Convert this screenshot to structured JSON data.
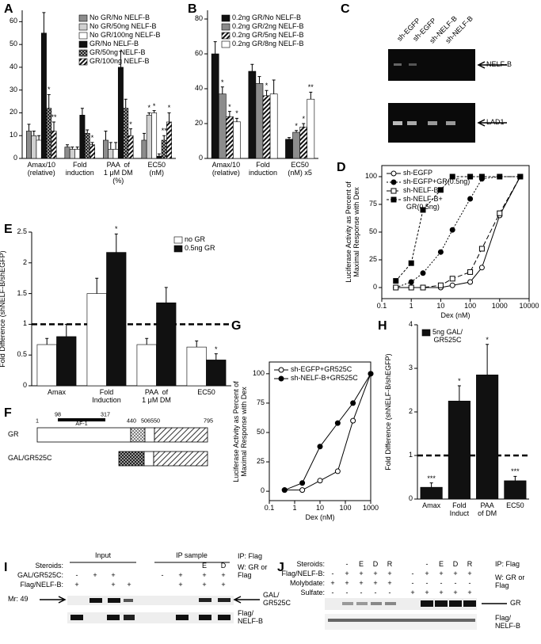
{
  "chart_data": [
    {
      "panel": "A",
      "type": "bar",
      "categories": [
        "Amax/10\n(relative)",
        "Fold\ninduction",
        "PAA  of\n1 μM DM\n(%)",
        "EC50\n(nM)"
      ],
      "ylim": [
        0,
        65
      ],
      "yticks": [
        0,
        10,
        20,
        30,
        40,
        50,
        60
      ],
      "legend": "upper right",
      "series": [
        {
          "name": "No GR/No NELF-B",
          "color": "#8c8c8c",
          "values": [
            12,
            5,
            8,
            8
          ],
          "errors": [
            3,
            1,
            4,
            3
          ]
        },
        {
          "name": "No GR/50ng NELF-B",
          "color": "#d0d0d0",
          "values": [
            10,
            4,
            4,
            19
          ],
          "errors": [
            2,
            1,
            3,
            1
          ],
          "stars": [
            null,
            null,
            null,
            "*"
          ]
        },
        {
          "name": "No GR/100ng NELF-B",
          "color": "#ffffff",
          "values": [
            8,
            4,
            4,
            20
          ],
          "errors": [
            2,
            1,
            3,
            1
          ],
          "stars": [
            null,
            null,
            null,
            "*"
          ]
        },
        {
          "name": "GR/No NELF-B",
          "color": "#111111",
          "values": [
            55,
            19,
            40,
            1
          ],
          "errors": [
            9,
            3,
            7,
            1
          ]
        },
        {
          "name": "GR/50ng NELF-B",
          "color": "#555555",
          "pattern": "check",
          "values": [
            22,
            11,
            22,
            8
          ],
          "errors": [
            6,
            1.5,
            4,
            2
          ],
          "stars": [
            "*",
            null,
            null,
            "**"
          ]
        },
        {
          "name": "GR/100ng NELF-B",
          "color": "#222222",
          "pattern": "hatch",
          "values": [
            12,
            6,
            10,
            16
          ],
          "errors": [
            4,
            1,
            3,
            4
          ],
          "stars": [
            "**",
            "*",
            "*",
            "*"
          ]
        }
      ]
    },
    {
      "panel": "B",
      "type": "bar",
      "categories": [
        "Amax/10\n(relative)",
        "Fold\ninduction",
        "EC50\n(nM) x5"
      ],
      "ylim": [
        0,
        85
      ],
      "yticks": [
        0,
        20,
        40,
        60,
        80
      ],
      "legend": "upper right",
      "series": [
        {
          "name": "0.2ng GR/No NELF-B",
          "color": "#111111",
          "values": [
            60,
            50,
            11
          ],
          "errors": [
            7,
            4,
            1
          ]
        },
        {
          "name": "0.2ng GR/2ng NELF-B",
          "color": "#8c8c8c",
          "values": [
            37,
            43,
            15
          ],
          "errors": [
            4,
            4,
            1
          ],
          "stars": [
            "*",
            null,
            "*"
          ]
        },
        {
          "name": "0.2ng GR/5ng NELF-B",
          "color": "#222222",
          "pattern": "hatch",
          "values": [
            24,
            36,
            18
          ],
          "errors": [
            3,
            3,
            2
          ],
          "stars": [
            "*",
            "*",
            "*"
          ]
        },
        {
          "name": "0.2ng GR/8ng NELF-B",
          "color": "#ffffff",
          "values": [
            21,
            37,
            34
          ],
          "errors": [
            2,
            8,
            4
          ],
          "stars": [
            "*",
            null,
            "**"
          ]
        }
      ]
    },
    {
      "panel": "D",
      "type": "scatter",
      "x": [
        0.3,
        1,
        2.5,
        10,
        25,
        100,
        250,
        1000,
        5000
      ],
      "xlim": [
        0.1,
        10000
      ],
      "xticks": [
        0.1,
        1,
        10,
        100,
        1000,
        10000
      ],
      "log_x": true,
      "ylim": [
        -10,
        110
      ],
      "yticks": [
        0,
        25,
        50,
        75,
        100
      ],
      "xlabel": "Dex (nM)",
      "ylabel": "Luciferase Activity as Percent of\nMaximal Response with Dex",
      "legend": "upper left",
      "series": [
        {
          "name": "sh-EGFP",
          "color": "#000000",
          "marker": "circle-open",
          "dash": "none",
          "values": [
            0,
            0,
            0,
            0,
            2,
            5,
            18,
            65,
            100
          ]
        },
        {
          "name": "sh-EGFP+GR(0.5ng)",
          "color": "#000000",
          "marker": "circle",
          "dash": "2,2",
          "values": [
            0,
            5,
            13,
            32,
            52,
            80,
            98,
            100,
            100
          ]
        },
        {
          "name": "sh-NELF-B",
          "color": "#000000",
          "marker": "square-open",
          "dash": "6,3",
          "values": [
            0,
            0,
            0,
            2,
            8,
            14,
            35,
            67,
            100
          ]
        },
        {
          "name": "sh-NELF-B+\nGR(0.5ng)",
          "color": "#000000",
          "marker": "square",
          "dash": "3,2",
          "values": [
            6,
            22,
            70,
            88,
            100,
            100,
            100,
            100,
            100
          ]
        }
      ]
    },
    {
      "panel": "E",
      "type": "bar",
      "categories": [
        "Amax",
        "Fold\nInduction",
        "PAA  of\n1 μM DM",
        "EC50"
      ],
      "ylim": [
        0,
        2.5
      ],
      "yticks": [
        0,
        0.5,
        1,
        1.5,
        2,
        2.5
      ],
      "ylabel": "Fold Difference (shNELF-B/shEGFP)",
      "legend": "upper right",
      "reference_line": 1,
      "series": [
        {
          "name": "no GR",
          "color": "#ffffff",
          "values": [
            0.67,
            1.5,
            0.67,
            0.63
          ],
          "errors": [
            0.1,
            0.25,
            0.1,
            0.1
          ]
        },
        {
          "name": "0.5ng GR",
          "color": "#111111",
          "values": [
            0.8,
            2.17,
            1.35,
            0.42
          ],
          "errors": [
            0.2,
            0.3,
            0.25,
            0.1
          ],
          "stars": [
            null,
            "*",
            null,
            "*"
          ]
        }
      ]
    },
    {
      "panel": "G",
      "type": "scatter",
      "x": [
        0.4,
        2,
        10,
        50,
        200,
        1000
      ],
      "xlim": [
        0.1,
        1000
      ],
      "xticks": [
        0.1,
        1,
        10,
        100,
        1000
      ],
      "log_x": true,
      "ylim": [
        -8,
        110
      ],
      "yticks": [
        0,
        25,
        50,
        75,
        100
      ],
      "xlabel": "Dex (nM)",
      "ylabel": "Luciferase Activity as Percent of\nMaximal Response with Dex",
      "legend": "upper left",
      "series": [
        {
          "name": "sh-EGFP+GR525C",
          "color": "#000000",
          "marker": "circle-open",
          "dash": "none",
          "values": [
            1,
            1,
            9,
            17,
            60,
            100
          ]
        },
        {
          "name": "sh-NELF-B+GR525C",
          "color": "#000000",
          "marker": "circle",
          "dash": "none",
          "values": [
            1,
            7,
            38,
            58,
            75,
            100
          ]
        }
      ]
    },
    {
      "panel": "H",
      "type": "bar",
      "categories": [
        "Amax",
        "Fold\nInduct",
        "PAA\nof DM",
        "EC50"
      ],
      "ylim": [
        0,
        4
      ],
      "yticks": [
        0,
        1,
        2,
        3,
        4
      ],
      "ylabel": "Fold Difference (shNELF-B/shEGFP)",
      "legend": "upper left",
      "reference_line": 1,
      "series": [
        {
          "name": "5ng GAL/\nGR525C",
          "color": "#111111",
          "values": [
            0.27,
            2.25,
            2.85,
            0.42
          ],
          "errors": [
            0.1,
            0.35,
            0.7,
            0.1
          ],
          "stars": [
            "***",
            "*",
            "*",
            "***"
          ]
        }
      ]
    }
  ],
  "panel_c": {
    "label": "C",
    "lanes": [
      "sh-EGFP",
      "sh-EGFP",
      "sh-NELF-B",
      "sh-NELF-B"
    ],
    "bands": [
      "NELF-B",
      "LAD1"
    ]
  },
  "panel_f": {
    "label": "F",
    "constructs": [
      "GR",
      "GAL/GR525C"
    ],
    "domain": "AF-1",
    "residues": [
      98,
      317,
      506,
      1,
      440,
      550,
      795
    ]
  },
  "panel_i": {
    "label": "I",
    "headers": [
      "Input",
      "IP sample"
    ],
    "ip": "IP: Flag",
    "western": "W: GR or\nFlag",
    "marker": "Mr: 49",
    "rows": [
      {
        "name": "Steroids:",
        "signs": [
          null,
          null,
          null,
          null,
          null,
          null,
          "E",
          "D"
        ]
      },
      {
        "name": "GAL/GR525C:",
        "signs": [
          "-",
          "+",
          "+",
          null,
          "-",
          "+",
          "+",
          "+"
        ]
      },
      {
        "name": "Flag/NELF-B:",
        "signs": [
          "+",
          null,
          "+",
          "+",
          null,
          "+",
          "+",
          "+"
        ]
      }
    ],
    "bands": [
      "GAL/\nGR525C",
      "Flag/\nNELF-B"
    ]
  },
  "panel_j": {
    "label": "J",
    "ip": "IP: Flag",
    "western": "W: GR or\nFlag",
    "rows": [
      {
        "name": "Steroids:",
        "signs": [
          null,
          "-",
          "E",
          "D",
          "R",
          null,
          "-",
          "E",
          "D",
          "R"
        ]
      },
      {
        "name": "Flag/NELF-B:",
        "signs": [
          "-",
          "+",
          "+",
          "+",
          "+",
          "-",
          "+",
          "+",
          "+",
          "+"
        ]
      },
      {
        "name": "Molybdate:",
        "signs": [
          "+",
          "+",
          "+",
          "+",
          "+",
          "-",
          "-",
          "-",
          "-",
          "-"
        ]
      },
      {
        "name": "Sulfate:",
        "signs": [
          "-",
          "-",
          "-",
          "-",
          "-",
          "+",
          "+",
          "+",
          "+",
          "+"
        ]
      }
    ],
    "bands": [
      "GR",
      "Flag/\nNELF-B"
    ]
  }
}
